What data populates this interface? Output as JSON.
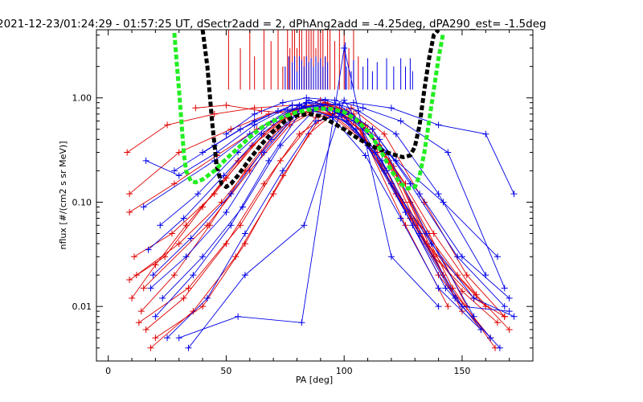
{
  "chart_data": {
    "type": "line",
    "title": "2021-12-23/01:24:29 - 01:57:25 UT, dSectr2add = 2, dPhAng2add = -4.25deg, dPA290_est=  -1.5deg",
    "xlabel": "PA [deg]",
    "ylabel": "nflux [#/(cm2 s sr MeV)]",
    "xlim": [
      -5,
      180
    ],
    "ylim": [
      0.003,
      4.5
    ],
    "yscale": "log",
    "grid": false,
    "xticks": [
      0,
      50,
      100,
      150
    ],
    "xtick_labels": [
      "0",
      "50",
      "100",
      "150"
    ],
    "yticks": [
      0.01,
      0.1,
      1.0
    ],
    "ytick_labels": [
      "0.01",
      "0.10",
      "1.00"
    ],
    "colors": {
      "red": "#e00000",
      "blue": "#0000e6",
      "black": "#000000",
      "green": "#22ee22"
    },
    "series": [
      {
        "color": "red",
        "style": "line+plus",
        "curves": [
          {
            "x": [
              9,
              24,
              40,
              55,
              70,
              84,
              97,
              108,
              122,
              138,
              155,
              168
            ],
            "y": [
              0.018,
              0.03,
              0.09,
              0.25,
              0.55,
              0.85,
              0.8,
              0.45,
              0.12,
              0.03,
              0.012,
              0.008
            ]
          },
          {
            "x": [
              10,
              20,
              33,
              50,
              66,
              80,
              92,
              104,
              117,
              132,
              150,
              165
            ],
            "y": [
              0.012,
              0.025,
              0.06,
              0.17,
              0.45,
              0.78,
              0.9,
              0.6,
              0.2,
              0.05,
              0.014,
              0.007
            ]
          },
          {
            "x": [
              14,
              28,
              43,
              58,
              72,
              86,
              100,
              114,
              128,
              145,
              162
            ],
            "y": [
              0.009,
              0.02,
              0.06,
              0.2,
              0.5,
              0.75,
              0.65,
              0.3,
              0.07,
              0.015,
              0.005
            ]
          },
          {
            "x": [
              8,
              25,
              45,
              62,
              78,
              90,
              103,
              118,
              135,
              160
            ],
            "y": [
              0.3,
              0.55,
              0.7,
              0.8,
              0.85,
              0.8,
              0.55,
              0.2,
              0.04,
              0.01
            ]
          },
          {
            "x": [
              9,
              30,
              52,
              68,
              82,
              95,
              108,
              125,
              148,
              170
            ],
            "y": [
              0.12,
              0.3,
              0.5,
              0.7,
              0.8,
              0.7,
              0.4,
              0.1,
              0.02,
              0.006
            ]
          },
          {
            "x": [
              12,
              30,
              48,
              65,
              80,
              93,
              107,
              122,
              140,
              158
            ],
            "y": [
              0.02,
              0.04,
              0.1,
              0.3,
              0.7,
              0.85,
              0.5,
              0.12,
              0.02,
              0.006
            ]
          },
          {
            "x": [
              16,
              32,
              50,
              66,
              81,
              94,
              110,
              126,
              144
            ],
            "y": [
              0.006,
              0.012,
              0.04,
              0.15,
              0.45,
              0.7,
              0.35,
              0.06,
              0.01
            ]
          },
          {
            "x": [
              9,
              28,
              46,
              63,
              78,
              92,
              106,
              121,
              138,
              156
            ],
            "y": [
              0.08,
              0.15,
              0.28,
              0.5,
              0.75,
              0.9,
              0.6,
              0.22,
              0.05,
              0.013
            ]
          },
          {
            "x": [
              18,
              36,
              54,
              70,
              85,
              98,
              112,
              128,
              146,
              164
            ],
            "y": [
              0.004,
              0.009,
              0.03,
              0.12,
              0.45,
              0.8,
              0.5,
              0.1,
              0.015,
              0.004
            ]
          },
          {
            "x": [
              11,
              27,
              45,
              61,
              76,
              90,
              104,
              119,
              136,
              152
            ],
            "y": [
              0.03,
              0.05,
              0.12,
              0.35,
              0.65,
              0.95,
              0.7,
              0.25,
              0.05,
              0.01
            ]
          },
          {
            "x": [
              13,
              34,
              56,
              73,
              88,
              101,
              115,
              131,
              150
            ],
            "y": [
              0.007,
              0.015,
              0.06,
              0.25,
              0.65,
              0.75,
              0.35,
              0.06,
              0.009
            ]
          },
          {
            "x": [
              20,
              40,
              58,
              74,
              89,
              103,
              117,
              134,
              152,
              168
            ],
            "y": [
              0.005,
              0.01,
              0.04,
              0.18,
              0.6,
              0.8,
              0.45,
              0.1,
              0.02,
              0.008
            ]
          },
          {
            "x": [
              37,
              50,
              65,
              80,
              95,
              110,
              126
            ],
            "y": [
              0.8,
              0.85,
              0.75,
              0.7,
              0.8,
              0.5,
              0.15
            ]
          },
          {
            "x": [
              15,
              42,
              60,
              77,
              93,
              109,
              124,
              142
            ],
            "y": [
              0.015,
              0.06,
              0.2,
              0.55,
              0.88,
              0.55,
              0.15,
              0.02
            ]
          }
        ]
      },
      {
        "color": "blue",
        "style": "line+plus",
        "curves": [
          {
            "x": [
              16,
              30,
              46,
              62,
              78,
              91,
              105,
              120,
              137,
              155,
              172
            ],
            "y": [
              0.25,
              0.18,
              0.3,
              0.55,
              0.85,
              0.8,
              0.5,
              0.15,
              0.04,
              0.012,
              0.008
            ]
          },
          {
            "x": [
              18,
              33,
              50,
              66,
              82,
              96,
              110,
              126,
              143,
              162
            ],
            "y": [
              0.015,
              0.03,
              0.08,
              0.3,
              0.8,
              0.75,
              0.35,
              0.08,
              0.015,
              0.005
            ]
          },
          {
            "x": [
              20,
              36,
              52,
              68,
              84,
              99,
              113,
              129,
              147,
              166
            ],
            "y": [
              0.008,
              0.02,
              0.06,
              0.25,
              0.9,
              0.7,
              0.3,
              0.06,
              0.012,
              0.004
            ]
          },
          {
            "x": [
              22,
              38,
              55,
              70,
              85,
              100,
              115,
              132,
              150,
              170
            ],
            "y": [
              0.06,
              0.12,
              0.3,
              0.6,
              0.95,
              0.75,
              0.4,
              0.12,
              0.03,
              0.012
            ]
          },
          {
            "x": [
              17,
              32,
              49,
              65,
              81,
              95,
              109,
              124,
              140,
              158
            ],
            "y": [
              0.035,
              0.07,
              0.18,
              0.45,
              0.85,
              0.65,
              0.28,
              0.07,
              0.015,
              0.006
            ]
          },
          {
            "x": [
              15,
              45,
              60,
              76,
              90,
              104,
              122,
              142,
              165
            ],
            "y": [
              0.09,
              0.25,
              0.45,
              0.75,
              0.85,
              0.6,
              0.25,
              0.1,
              0.03
            ]
          },
          {
            "x": [
              25,
              42,
              58,
              74,
              88,
              102,
              118,
              135,
              155
            ],
            "y": [
              0.005,
              0.012,
              0.05,
              0.2,
              0.6,
              0.7,
              0.3,
              0.05,
              0.008
            ]
          },
          {
            "x": [
              19,
              35,
              52,
              69,
              84,
              98,
              112,
              128,
              148,
              168
            ],
            "y": [
              0.02,
              0.045,
              0.12,
              0.4,
              0.9,
              0.85,
              0.5,
              0.15,
              0.03,
              0.01
            ]
          },
          {
            "x": [
              40,
              56,
              72,
              88,
              104,
              120,
              140,
              160,
              172
            ],
            "y": [
              0.3,
              0.5,
              0.75,
              0.85,
              0.9,
              0.8,
              0.55,
              0.45,
              0.12
            ]
          },
          {
            "x": [
              50,
              62,
              74,
              84,
              96,
              108,
              124,
              144,
              168
            ],
            "y": [
              0.45,
              0.7,
              0.9,
              1.0,
              0.95,
              0.8,
              0.6,
              0.3,
              0.015
            ]
          },
          {
            "x": [
              28,
              45,
              62,
              78,
              92,
              106,
              122,
              140,
              160
            ],
            "y": [
              0.2,
              0.35,
              0.6,
              0.85,
              0.95,
              0.75,
              0.45,
              0.12,
              0.02
            ]
          },
          {
            "x": [
              23,
              40,
              57,
              73,
              87,
              101,
              116,
              132,
              150,
              170
            ],
            "y": [
              0.012,
              0.03,
              0.09,
              0.35,
              0.75,
              0.6,
              0.25,
              0.05,
              0.01,
              0.009
            ]
          },
          {
            "x": [
              30,
              55,
              82,
              100,
              120,
              140
            ],
            "y": [
              0.005,
              0.008,
              0.007,
              3.0,
              0.03,
              0.01
            ]
          },
          {
            "x": [
              34,
              58,
              83,
              100,
              118
            ],
            "y": [
              0.004,
              0.02,
              0.06,
              0.95,
              0.2
            ]
          }
        ]
      },
      {
        "color": "black",
        "style": "thick-dashed",
        "x": [
          40,
          42,
          44,
          46,
          48,
          50,
          52,
          55,
          60,
          65,
          70,
          75,
          80,
          85,
          90,
          95,
          100,
          105,
          110,
          115,
          120,
          125,
          128,
          130,
          132,
          134,
          136,
          138,
          140
        ],
        "y": [
          4.5,
          2.0,
          0.6,
          0.22,
          0.15,
          0.14,
          0.15,
          0.18,
          0.26,
          0.36,
          0.48,
          0.6,
          0.68,
          0.7,
          0.67,
          0.58,
          0.5,
          0.42,
          0.36,
          0.32,
          0.29,
          0.27,
          0.28,
          0.34,
          0.55,
          1.2,
          2.4,
          4.0,
          4.5
        ]
      },
      {
        "color": "green",
        "style": "thick-dashed",
        "x": [
          28,
          29,
          30,
          31,
          32,
          33,
          35,
          37,
          40,
          45,
          50,
          55,
          60,
          65,
          70,
          75,
          80,
          85,
          90,
          95,
          100,
          105,
          110,
          115,
          120,
          124,
          127,
          130,
          132,
          134,
          136,
          138,
          140,
          142
        ],
        "y": [
          4.2,
          2.2,
          1.2,
          0.6,
          0.3,
          0.2,
          0.16,
          0.155,
          0.165,
          0.2,
          0.26,
          0.33,
          0.42,
          0.52,
          0.6,
          0.67,
          0.73,
          0.77,
          0.79,
          0.78,
          0.73,
          0.62,
          0.48,
          0.33,
          0.2,
          0.15,
          0.135,
          0.14,
          0.18,
          0.3,
          0.6,
          1.2,
          2.4,
          4.2
        ]
      }
    ],
    "vertical_markers": [
      {
        "color": "red",
        "y_from": 1.2,
        "x": [
          51,
          56,
          60,
          62,
          66,
          69,
          72,
          74,
          76,
          77,
          78,
          79,
          80,
          81,
          82,
          83,
          84,
          85,
          86,
          87,
          88,
          89,
          90,
          91,
          92,
          93,
          94,
          96,
          98,
          100,
          102,
          104,
          106
        ],
        "y_to": [
          4.5,
          3.0,
          4.5,
          2.5,
          4.5,
          3.5,
          4.5,
          2.0,
          4.5,
          3.0,
          4.5,
          4.5,
          3.0,
          4.5,
          4.5,
          2.5,
          4.5,
          4.5,
          4.5,
          4.5,
          3.0,
          4.5,
          4.5,
          4.5,
          2.5,
          4.5,
          4.5,
          3.5,
          4.5,
          4.5,
          3.0,
          4.5,
          2.5
        ]
      },
      {
        "color": "blue",
        "y_from": 1.2,
        "x": [
          75,
          76.5,
          78,
          79,
          80,
          81,
          82,
          83,
          84,
          85,
          86,
          87,
          88,
          89,
          90,
          91,
          92,
          93,
          100.5,
          101,
          103,
          104,
          108,
          110,
          112,
          114,
          118,
          121,
          124,
          126,
          128,
          129
        ],
        "y_to": [
          2.0,
          2.5,
          2.2,
          2.5,
          1.8,
          2.5,
          2.3,
          2.0,
          2.5,
          2.2,
          2.4,
          2.0,
          2.5,
          2.2,
          2.4,
          2.0,
          2.5,
          2.2,
          3.4,
          2.0,
          1.8,
          2.3,
          2.0,
          2.4,
          1.8,
          2.2,
          2.4,
          2.0,
          2.4,
          2.0,
          2.4,
          1.8
        ]
      }
    ]
  }
}
